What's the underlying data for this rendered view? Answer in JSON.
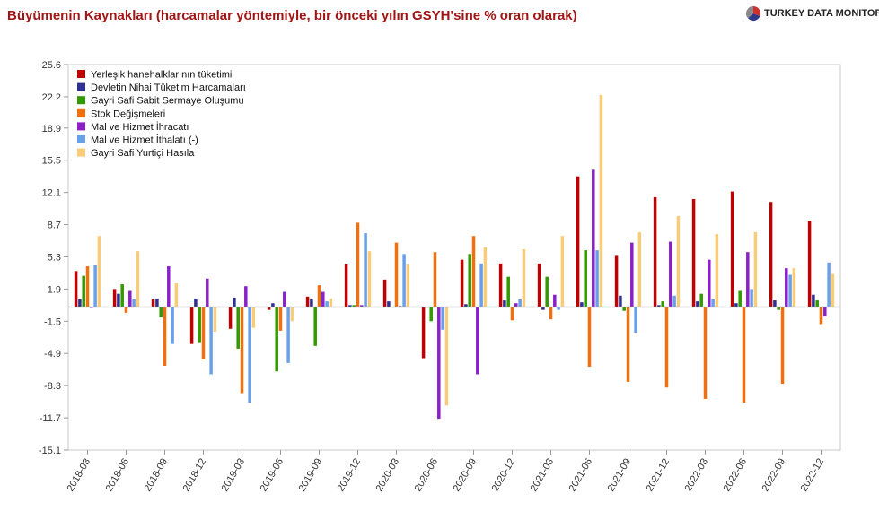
{
  "header": {
    "title": "Büyümenin Kaynakları (harcamalar yöntemiyle, bir önceki yılın GSYH'sine % oran olarak)",
    "brand": "TURKEY DATA MONITOR",
    "brand_colors": [
      "#d0312d",
      "#2e3a87",
      "#8a8a8a"
    ]
  },
  "chart_data": {
    "type": "bar",
    "title": "Büyümenin Kaynakları (harcamalar yöntemiyle, bir önceki yılın GSYH'sine % oran olarak)",
    "xlabel": "",
    "ylabel": "",
    "ylim": [
      -15.1,
      25.6
    ],
    "yticks": [
      25.6,
      22.2,
      18.9,
      15.5,
      12.1,
      8.7,
      5.3,
      1.9,
      -1.5,
      -4.9,
      -8.3,
      -11.7,
      -15.1
    ],
    "ytick_labels": [
      "25.6",
      "22.2",
      "18.9",
      "15.5",
      "12.1",
      "8.7",
      "5.3",
      "1.9",
      "-1.5",
      "-4.9",
      "-8.3",
      "-11.7",
      "-15.1"
    ],
    "grid": false,
    "legend_position": "top-left",
    "categories": [
      "2018-03",
      "2018-06",
      "2018-09",
      "2018-12",
      "2019-03",
      "2019-06",
      "2019-09",
      "2019-12",
      "2020-03",
      "2020-06",
      "2020-09",
      "2020-12",
      "2021-03",
      "2021-06",
      "2021-09",
      "2021-12",
      "2022-03",
      "2022-06",
      "2022-09",
      "2022-12"
    ],
    "series": [
      {
        "name": "Yerleşik hanehalklarının tüketimi",
        "color": "#c00000",
        "values": [
          3.8,
          1.9,
          0.8,
          -3.9,
          -2.3,
          -0.3,
          1.1,
          4.5,
          2.9,
          -5.4,
          5.0,
          4.6,
          4.6,
          13.8,
          5.4,
          11.6,
          11.4,
          12.2,
          11.1,
          9.1
        ]
      },
      {
        "name": "Devletin Nihai Tüketim Harcamaları",
        "color": "#2e3191",
        "values": [
          0.8,
          1.4,
          0.9,
          0.9,
          1.0,
          0.4,
          0.8,
          0.2,
          0.6,
          0.0,
          0.3,
          0.7,
          -0.3,
          0.5,
          1.2,
          0.2,
          0.6,
          0.4,
          0.7,
          1.3
        ]
      },
      {
        "name": "Gayri Safi Sabit Sermaye Oluşumu",
        "color": "#339900",
        "values": [
          3.3,
          2.4,
          -1.1,
          -3.8,
          -4.4,
          -6.8,
          -4.1,
          0.2,
          0.0,
          -1.5,
          5.6,
          3.2,
          3.2,
          6.0,
          -0.4,
          0.6,
          1.4,
          1.7,
          -0.3,
          0.7
        ]
      },
      {
        "name": "Stok Değişmeleri",
        "color": "#f07010",
        "values": [
          4.3,
          -0.6,
          -6.2,
          -5.5,
          -9.1,
          -2.5,
          2.3,
          8.9,
          6.8,
          5.8,
          7.5,
          -1.4,
          -1.3,
          -6.3,
          -7.9,
          -8.5,
          -9.7,
          -10.1,
          -8.1,
          -1.8
        ]
      },
      {
        "name": "Mal ve Hizmet İhracatı",
        "color": "#8b1fc8",
        "values": [
          -0.1,
          1.7,
          4.3,
          3.0,
          2.2,
          1.6,
          1.6,
          0.2,
          0.1,
          -11.8,
          -7.1,
          0.4,
          1.3,
          14.5,
          6.8,
          6.9,
          5.0,
          5.8,
          4.1,
          -1.0
        ]
      },
      {
        "name": "Mal ve Hizmet İthalatı (-)",
        "color": "#6aa0e8",
        "values": [
          4.4,
          0.8,
          -3.9,
          -7.1,
          -10.1,
          -5.9,
          0.6,
          7.8,
          5.6,
          -2.4,
          4.6,
          0.8,
          -0.3,
          6.0,
          -2.7,
          1.2,
          0.8,
          1.9,
          3.4,
          4.7
        ]
      },
      {
        "name": "Gayri Safi Yurtiçi Hasıla",
        "color": "#f8cc78",
        "values": [
          7.5,
          5.9,
          2.5,
          -2.6,
          -2.2,
          -1.5,
          0.9,
          5.9,
          4.5,
          -10.4,
          6.3,
          6.1,
          7.5,
          22.4,
          7.9,
          9.6,
          7.7,
          7.9,
          4.1,
          3.5
        ]
      }
    ]
  }
}
